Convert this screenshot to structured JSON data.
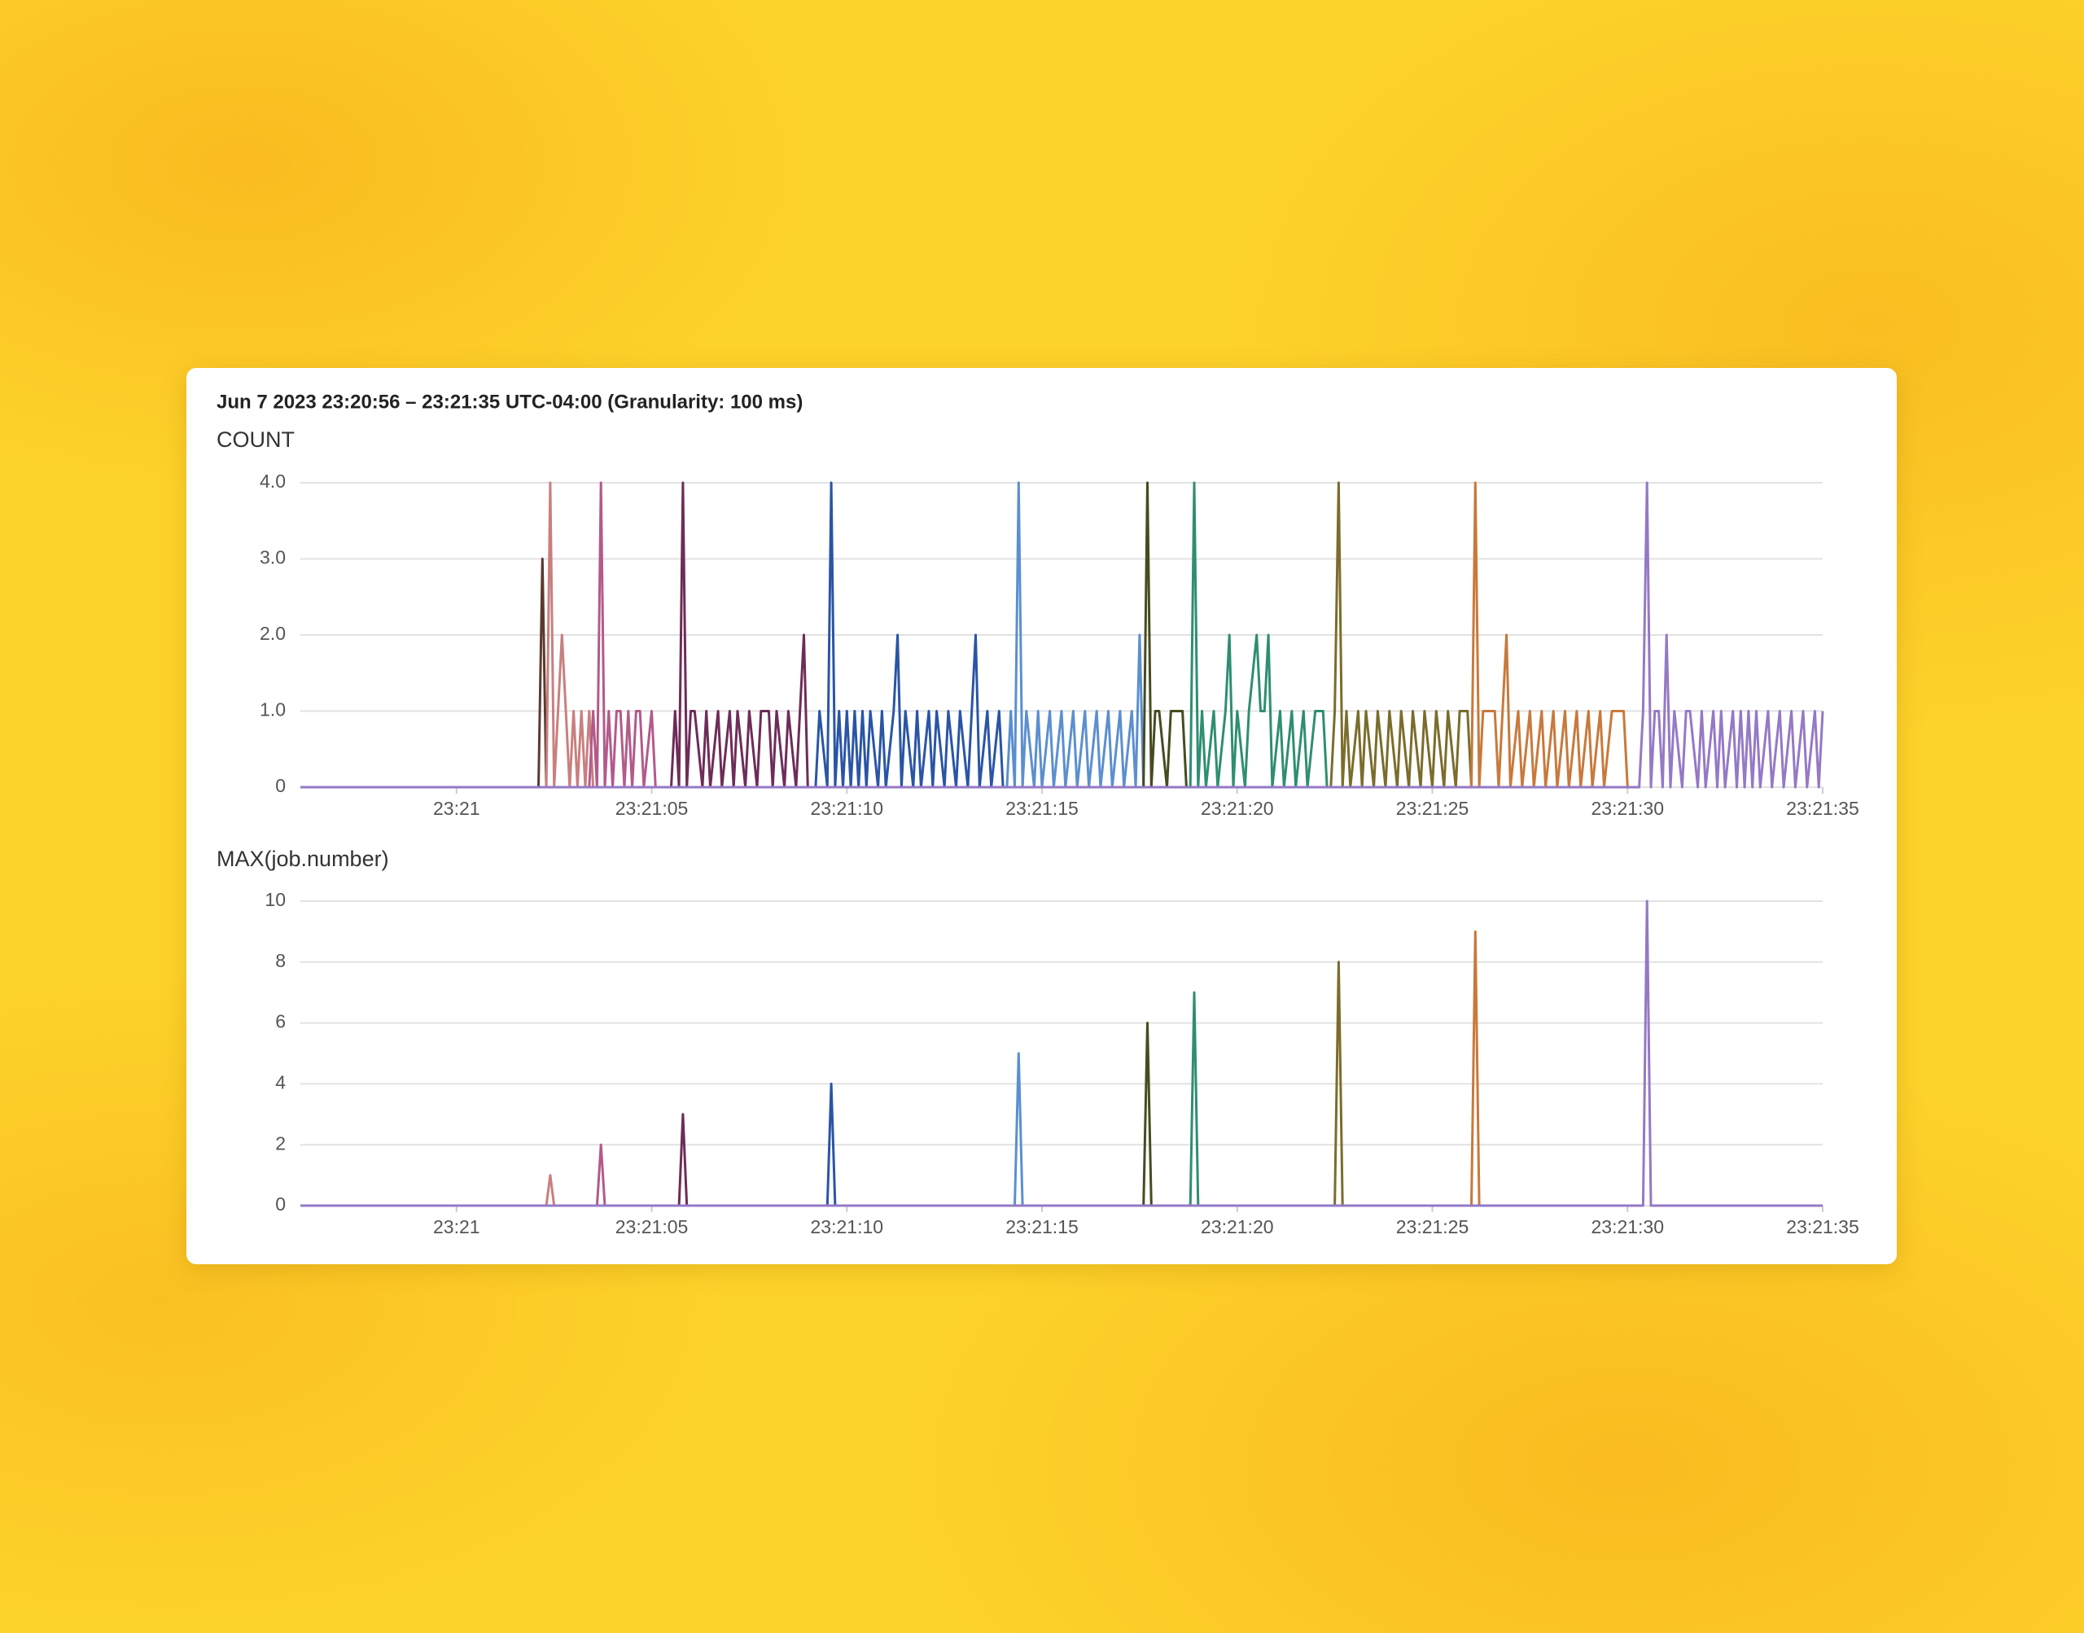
{
  "header": {
    "title": "Jun 7 2023 23:20:56 – 23:21:35 UTC-04:00 (Granularity: 100 ms)"
  },
  "chart_data": [
    {
      "type": "line",
      "title": "COUNT",
      "grid": true,
      "xlim": [
        -4,
        35
      ],
      "ylim": [
        0,
        4
      ],
      "xticks": [
        {
          "value": 0,
          "label": "23:21"
        },
        {
          "value": 5,
          "label": "23:21:05"
        },
        {
          "value": 10,
          "label": "23:21:10"
        },
        {
          "value": 15,
          "label": "23:21:15"
        },
        {
          "value": 20,
          "label": "23:21:20"
        },
        {
          "value": 25,
          "label": "23:21:25"
        },
        {
          "value": 30,
          "label": "23:21:30"
        },
        {
          "value": 35,
          "label": "23:21:35"
        }
      ],
      "yticks": [
        0,
        {
          "value": 1,
          "label": "1.0"
        },
        {
          "value": 2,
          "label": "2.0"
        },
        {
          "value": 3,
          "label": "3.0"
        },
        {
          "value": 4,
          "label": "4.0"
        }
      ],
      "series": [
        {
          "color": "#5b3a2e",
          "x": [
            2.1,
            2.2,
            2.3
          ],
          "values": [
            0,
            3,
            0
          ]
        },
        {
          "color": "#c97f7f",
          "x": [
            2.3,
            2.4,
            2.5,
            2.6,
            2.7,
            2.8,
            2.9,
            3.0,
            3.1,
            3.2,
            3.3,
            3.4,
            3.5
          ],
          "values": [
            0,
            4,
            0,
            1,
            2,
            1,
            0,
            1,
            0,
            1,
            0,
            1,
            0
          ]
        },
        {
          "color": "#b35a8a",
          "x": [
            3.4,
            3.5,
            3.6,
            3.7,
            3.8,
            3.9,
            4.0,
            4.1,
            4.2,
            4.3,
            4.4,
            4.5,
            4.6,
            4.7,
            4.8,
            5.0,
            5.1
          ],
          "values": [
            0,
            1,
            0,
            4,
            0,
            1,
            0,
            1,
            1,
            0,
            1,
            0,
            1,
            1,
            0,
            1,
            0
          ]
        },
        {
          "color": "#6e2c58",
          "x": [
            5.5,
            5.6,
            5.7,
            5.8,
            5.9,
            6.0,
            6.1,
            6.3,
            6.4,
            6.5,
            6.7,
            6.8,
            7.0,
            7.1,
            7.2,
            7.4,
            7.5,
            7.7,
            7.8,
            8.0,
            8.1,
            8.2,
            8.4,
            8.5,
            8.7,
            8.8,
            8.9,
            9.0
          ],
          "values": [
            0,
            1,
            0,
            4,
            0,
            1,
            1,
            0,
            1,
            0,
            1,
            0,
            1,
            0,
            1,
            0,
            1,
            0,
            1,
            1,
            0,
            1,
            0,
            1,
            0,
            1,
            2,
            0
          ]
        },
        {
          "color": "#2a55a6",
          "x": [
            9.2,
            9.3,
            9.5,
            9.6,
            9.7,
            9.8,
            9.9,
            10.0,
            10.1,
            10.2,
            10.3,
            10.4,
            10.5,
            10.6,
            10.8,
            10.9,
            11.0,
            11.2,
            11.3,
            11.4,
            11.5,
            11.7,
            11.8,
            11.9,
            12.1,
            12.2,
            12.3,
            12.5,
            12.6,
            12.8,
            12.9,
            13.1,
            13.2,
            13.3,
            13.4,
            13.6,
            13.7,
            13.9,
            14.0
          ],
          "values": [
            0,
            1,
            0,
            4,
            0,
            1,
            0,
            1,
            0,
            1,
            0,
            1,
            0,
            1,
            0,
            1,
            0,
            1,
            2,
            0,
            1,
            0,
            1,
            0,
            1,
            0,
            1,
            0,
            1,
            0,
            1,
            0,
            1,
            2,
            0,
            1,
            0,
            1,
            0
          ]
        },
        {
          "color": "#5b8fcf",
          "x": [
            14.1,
            14.2,
            14.3,
            14.4,
            14.5,
            14.6,
            14.8,
            14.9,
            15.0,
            15.2,
            15.3,
            15.5,
            15.6,
            15.8,
            15.9,
            16.1,
            16.2,
            16.4,
            16.5,
            16.7,
            16.8,
            17.0,
            17.1,
            17.3,
            17.4,
            17.5,
            17.6
          ],
          "values": [
            0,
            1,
            0,
            4,
            0,
            1,
            0,
            1,
            0,
            1,
            0,
            1,
            0,
            1,
            0,
            1,
            0,
            1,
            0,
            1,
            0,
            1,
            0,
            1,
            0,
            2,
            0
          ]
        },
        {
          "color": "#474b1f",
          "x": [
            17.6,
            17.7,
            17.8,
            17.9,
            18.0,
            18.2,
            18.3,
            18.5,
            18.6,
            18.7
          ],
          "values": [
            0,
            4,
            0,
            1,
            1,
            0,
            1,
            1,
            1,
            0
          ]
        },
        {
          "color": "#2e8e72",
          "x": [
            18.8,
            18.9,
            19.0,
            19.1,
            19.2,
            19.4,
            19.5,
            19.7,
            19.8,
            19.9,
            20.0,
            20.2,
            20.3,
            20.5,
            20.6,
            20.7,
            20.8,
            20.9,
            21.1,
            21.2,
            21.4,
            21.5,
            21.7,
            21.8,
            22.0,
            22.1,
            22.2,
            22.3
          ],
          "values": [
            0,
            4,
            0,
            1,
            0,
            1,
            0,
            1,
            2,
            0,
            1,
            0,
            1,
            2,
            1,
            1,
            2,
            0,
            1,
            0,
            1,
            0,
            1,
            0,
            1,
            1,
            1,
            0
          ]
        },
        {
          "color": "#7a6d2b",
          "x": [
            22.4,
            22.5,
            22.6,
            22.7,
            22.8,
            22.9,
            23.1,
            23.2,
            23.3,
            23.5,
            23.6,
            23.8,
            23.9,
            24.1,
            24.2,
            24.4,
            24.5,
            24.7,
            24.8,
            25.0,
            25.1,
            25.3,
            25.4,
            25.6,
            25.7,
            25.9,
            26.0
          ],
          "values": [
            0,
            1,
            4,
            0,
            1,
            0,
            1,
            0,
            1,
            0,
            1,
            0,
            1,
            0,
            1,
            0,
            1,
            0,
            1,
            0,
            1,
            0,
            1,
            0,
            1,
            1,
            0
          ]
        },
        {
          "color": "#c8793b",
          "x": [
            26.0,
            26.1,
            26.2,
            26.3,
            26.4,
            26.6,
            26.7,
            26.8,
            26.9,
            27.0,
            27.2,
            27.3,
            27.5,
            27.6,
            27.8,
            27.9,
            28.1,
            28.2,
            28.4,
            28.5,
            28.7,
            28.8,
            29.0,
            29.1,
            29.3,
            29.4,
            29.6,
            29.7,
            29.9,
            30.0
          ],
          "values": [
            0,
            4,
            0,
            1,
            1,
            1,
            0,
            1,
            2,
            0,
            1,
            0,
            1,
            0,
            1,
            0,
            1,
            0,
            1,
            0,
            1,
            0,
            1,
            0,
            1,
            0,
            1,
            1,
            1,
            0
          ]
        },
        {
          "color": "#9479c6",
          "x": [
            -4,
            30.3,
            30.4,
            30.5,
            30.6,
            30.7,
            30.8,
            30.9,
            31.0,
            31.1,
            31.2,
            31.4,
            31.5,
            31.6,
            31.8,
            31.9,
            32.0,
            32.2,
            32.3,
            32.4,
            32.5,
            32.7,
            32.8,
            32.9,
            33.0,
            33.1,
            33.2,
            33.3,
            33.4,
            33.6,
            33.7,
            33.9,
            34.0,
            34.2,
            34.3,
            34.5,
            34.6,
            34.8,
            34.9,
            35.0
          ],
          "values": [
            0,
            0,
            1,
            4,
            0,
            1,
            1,
            0,
            2,
            0,
            1,
            0,
            1,
            1,
            0,
            1,
            0,
            1,
            0,
            1,
            0,
            1,
            0,
            1,
            0,
            1,
            0,
            1,
            0,
            1,
            0,
            1,
            0,
            1,
            0,
            1,
            0,
            1,
            0,
            1
          ]
        }
      ]
    },
    {
      "type": "line",
      "title": "MAX(job.number)",
      "grid": true,
      "xlim": [
        -4,
        35
      ],
      "ylim": [
        0,
        10
      ],
      "xticks": [
        {
          "value": 0,
          "label": "23:21"
        },
        {
          "value": 5,
          "label": "23:21:05"
        },
        {
          "value": 10,
          "label": "23:21:10"
        },
        {
          "value": 15,
          "label": "23:21:15"
        },
        {
          "value": 20,
          "label": "23:21:20"
        },
        {
          "value": 25,
          "label": "23:21:25"
        },
        {
          "value": 30,
          "label": "23:21:30"
        },
        {
          "value": 35,
          "label": "23:21:35"
        }
      ],
      "yticks": [
        0,
        2,
        4,
        6,
        8,
        10
      ],
      "series": [
        {
          "color": "#c97f7f",
          "x": [
            2.3,
            2.4,
            2.5
          ],
          "values": [
            0,
            1,
            0
          ]
        },
        {
          "color": "#b35a8a",
          "x": [
            3.6,
            3.7,
            3.8
          ],
          "values": [
            0,
            2,
            0
          ]
        },
        {
          "color": "#6e2c58",
          "x": [
            5.7,
            5.8,
            5.9
          ],
          "values": [
            0,
            3,
            0
          ]
        },
        {
          "color": "#2a55a6",
          "x": [
            9.5,
            9.6,
            9.7
          ],
          "values": [
            0,
            4,
            0
          ]
        },
        {
          "color": "#5b8fcf",
          "x": [
            14.3,
            14.4,
            14.5
          ],
          "values": [
            0,
            5,
            0
          ]
        },
        {
          "color": "#474b1f",
          "x": [
            17.6,
            17.7,
            17.8
          ],
          "values": [
            0,
            6,
            0
          ]
        },
        {
          "color": "#2e8e72",
          "x": [
            18.8,
            18.9,
            19.0
          ],
          "values": [
            0,
            7,
            0
          ]
        },
        {
          "color": "#7a6d2b",
          "x": [
            22.5,
            22.6,
            22.7
          ],
          "values": [
            0,
            8,
            0
          ]
        },
        {
          "color": "#c8793b",
          "x": [
            26.0,
            26.1,
            26.2
          ],
          "values": [
            0,
            9,
            0
          ]
        },
        {
          "color": "#9479c6",
          "x": [
            -4,
            30.4,
            30.5,
            30.6,
            35
          ],
          "values": [
            0,
            0,
            10,
            0,
            0
          ]
        }
      ]
    }
  ]
}
